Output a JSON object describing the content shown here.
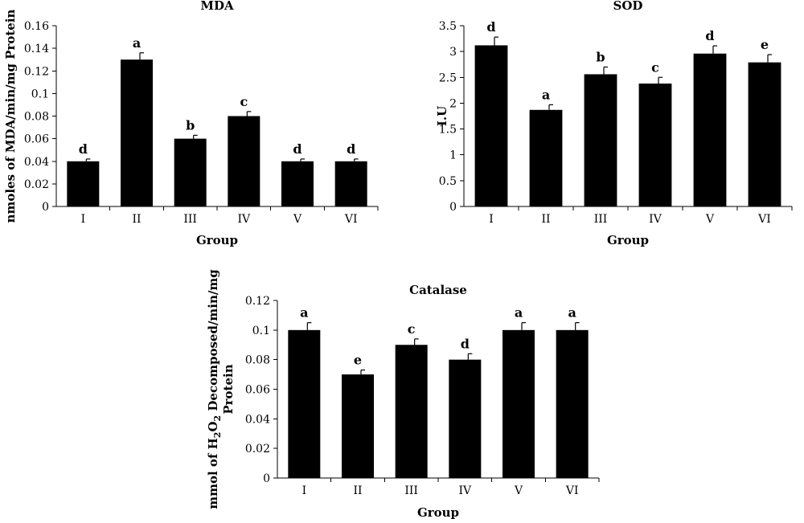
{
  "chart_data": [
    {
      "type": "bar",
      "title": "MDA",
      "xlabel": "Group",
      "ylabel": "nmoles of MDA/min/mg Protein",
      "ylabel_parts": [],
      "ylabel_second_line": "",
      "categories": [
        "I",
        "II",
        "III",
        "IV",
        "V",
        "VI"
      ],
      "values": [
        0.04,
        0.13,
        0.06,
        0.08,
        0.04,
        0.04
      ],
      "errors": [
        0.002,
        0.006,
        0.003,
        0.004,
        0.002,
        0.002
      ],
      "letters": [
        "d",
        "a",
        "b",
        "c",
        "d",
        "d"
      ],
      "ylim": [
        0,
        0.16
      ],
      "yticks": [
        "0",
        "0.02",
        "0.04",
        "0.06",
        "0.08",
        "0.1",
        "0.12",
        "0.14",
        "0.16"
      ],
      "grid": false
    },
    {
      "type": "bar",
      "title": "SOD",
      "xlabel": "Group",
      "ylabel": "I.U",
      "ylabel_parts": [],
      "ylabel_second_line": "",
      "categories": [
        "I",
        "II",
        "III",
        "IV",
        "V",
        "VI"
      ],
      "values": [
        3.12,
        1.87,
        2.56,
        2.38,
        2.96,
        2.79
      ],
      "errors": [
        0.16,
        0.1,
        0.14,
        0.12,
        0.15,
        0.15
      ],
      "letters": [
        "d",
        "a",
        "b",
        "c",
        "d",
        "e"
      ],
      "ylim": [
        0,
        3.5
      ],
      "yticks": [
        "0",
        "0.5",
        "1",
        "1.5",
        "2",
        "2.5",
        "3",
        "3.5"
      ],
      "grid": false
    },
    {
      "type": "bar",
      "title": "Catalase",
      "xlabel": "Group",
      "ylabel": "mmol of H2O2 Decomposed/min/mg Protein",
      "ylabel_parts": [
        {
          "text": "mmol of H",
          "sub": false
        },
        {
          "text": "2",
          "sub": true
        },
        {
          "text": "O",
          "sub": false
        },
        {
          "text": "2",
          "sub": true
        },
        {
          "text": " Decomposed/min/mg",
          "sub": false
        }
      ],
      "ylabel_second_line": "Protein",
      "categories": [
        "I",
        "II",
        "III",
        "IV",
        "V",
        "VI"
      ],
      "values": [
        0.1,
        0.07,
        0.09,
        0.08,
        0.1,
        0.1
      ],
      "errors": [
        0.005,
        0.003,
        0.004,
        0.004,
        0.005,
        0.005
      ],
      "letters": [
        "a",
        "e",
        "c",
        "d",
        "a",
        "a"
      ],
      "ylim": [
        0,
        0.12
      ],
      "yticks": [
        "0",
        "0.02",
        "0.04",
        "0.06",
        "0.08",
        "0.1",
        "0.12"
      ],
      "grid": false
    }
  ]
}
